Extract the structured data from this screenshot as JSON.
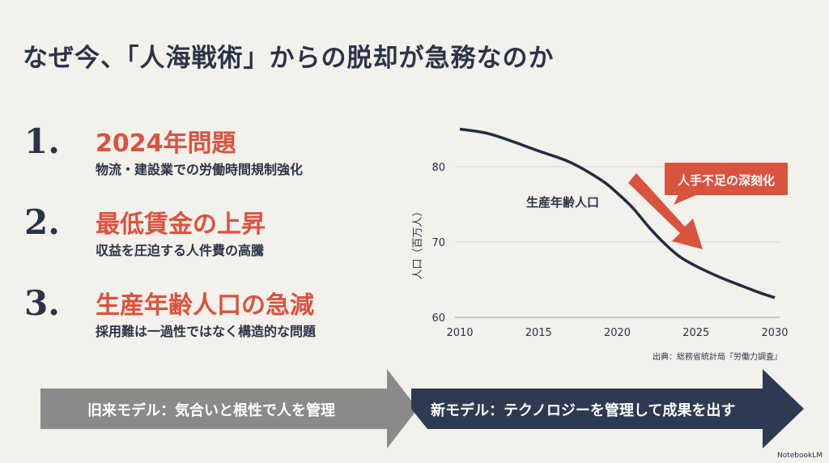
{
  "title": "なぜ今、「人海戦術」からの脱却が急務なのか",
  "items": [
    {
      "number": "1.",
      "heading": "2024年問題",
      "sub": "物流・建設業での労働時間規制強化"
    },
    {
      "number": "2.",
      "heading": "最低賃金の上昇",
      "sub": "収益を圧迫する人件費の高騰"
    },
    {
      "number": "3.",
      "heading": "生産年齢人口の急減",
      "sub": "採用難は一過性ではなく構造的な問題"
    }
  ],
  "chart_data": {
    "type": "line",
    "ylabel": "人口（百万人）",
    "xlabel": "",
    "x": [
      2010,
      2012,
      2015,
      2017,
      2019,
      2020,
      2021,
      2022,
      2023,
      2024,
      2025,
      2026,
      2027,
      2028,
      2029,
      2030
    ],
    "series": [
      {
        "name": "生産年齢人口",
        "values": [
          85,
          84.3,
          82.1,
          80.6,
          78.2,
          76.5,
          74.5,
          72,
          69.8,
          68,
          66.8,
          65.8,
          64.9,
          64.1,
          63.3,
          62.6
        ]
      }
    ],
    "xticks": [
      "2010",
      "2015",
      "2020",
      "2025",
      "2030"
    ],
    "yticks": [
      "60",
      "70",
      "80"
    ],
    "xlim": [
      2010,
      2030
    ],
    "ylim": [
      60,
      85
    ],
    "grid": true,
    "annotation": "人手不足の深刻化",
    "source": "出典：総務省統計局『労働力調査』",
    "line_color": "#232c40",
    "accent_color": "#d9533f"
  },
  "flow": {
    "old_model": "旧来モデル：気合いと根性で人を管理",
    "new_model": "新モデル：テクノロジーを管理して成果を出す",
    "old_color": "#8a8a8a",
    "new_color": "#2e3a52"
  },
  "brand": "NotebookLM"
}
